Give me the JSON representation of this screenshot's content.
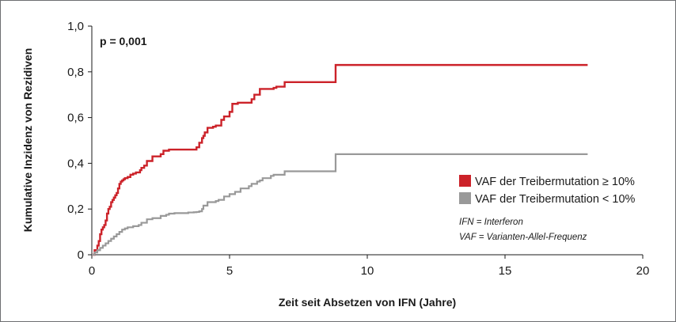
{
  "chart_data": {
    "type": "line",
    "step": true,
    "xlabel": "Zeit seit Absetzen von IFN (Jahre)",
    "ylabel": "Kumulative Inzidenz von Rezidiven",
    "xlim": [
      0,
      20
    ],
    "ylim": [
      0,
      1.0
    ],
    "x_ticks": [
      "0",
      "5",
      "10",
      "15",
      "20"
    ],
    "y_ticks": [
      "0",
      "0,2",
      "0,4",
      "0,6",
      "0,8",
      "1,0"
    ],
    "annotation": "p = 0,001",
    "notes": [
      "IFN = Interferon",
      "VAF = Varianten-Allel-Frequenz"
    ],
    "legend_position": "right",
    "series": [
      {
        "name": "VAF der Treibermutation ≥ 10%",
        "color": "#cc2229",
        "x": [
          0,
          0.1,
          0.2,
          0.25,
          0.3,
          0.35,
          0.4,
          0.45,
          0.5,
          0.55,
          0.6,
          0.65,
          0.7,
          0.75,
          0.8,
          0.85,
          0.9,
          0.95,
          1.0,
          1.05,
          1.1,
          1.15,
          1.2,
          1.3,
          1.4,
          1.5,
          1.6,
          1.7,
          1.75,
          1.8,
          1.9,
          2.0,
          2.2,
          2.3,
          2.5,
          2.6,
          2.8,
          3.5,
          3.8,
          3.9,
          4.0,
          4.05,
          4.1,
          4.2,
          4.4,
          4.5,
          4.7,
          4.8,
          5.0,
          5.1,
          5.3,
          5.8,
          5.9,
          6.1,
          6.6,
          6.7,
          7.0,
          7.5,
          8.85,
          18.0
        ],
        "y": [
          0,
          0.02,
          0.04,
          0.06,
          0.09,
          0.11,
          0.12,
          0.13,
          0.15,
          0.18,
          0.2,
          0.21,
          0.23,
          0.24,
          0.25,
          0.26,
          0.27,
          0.29,
          0.31,
          0.32,
          0.325,
          0.33,
          0.335,
          0.34,
          0.35,
          0.355,
          0.36,
          0.36,
          0.37,
          0.38,
          0.39,
          0.41,
          0.43,
          0.43,
          0.44,
          0.455,
          0.46,
          0.46,
          0.47,
          0.49,
          0.51,
          0.52,
          0.535,
          0.555,
          0.56,
          0.565,
          0.59,
          0.605,
          0.625,
          0.66,
          0.665,
          0.68,
          0.7,
          0.725,
          0.73,
          0.735,
          0.755,
          0.755,
          0.83,
          0.83
        ]
      },
      {
        "name": "VAF der Treibermutation < 10%",
        "color": "#999999",
        "x": [
          0,
          0.1,
          0.2,
          0.3,
          0.4,
          0.5,
          0.6,
          0.7,
          0.8,
          0.9,
          1.0,
          1.1,
          1.2,
          1.3,
          1.5,
          1.7,
          1.8,
          2.0,
          2.2,
          2.5,
          2.7,
          2.8,
          3.0,
          3.5,
          3.7,
          3.8,
          3.9,
          4.0,
          4.05,
          4.2,
          4.5,
          4.6,
          4.8,
          5.0,
          5.2,
          5.4,
          5.7,
          5.8,
          6.0,
          6.1,
          6.2,
          6.5,
          6.6,
          7.0,
          7.5,
          8.85,
          18.0
        ],
        "y": [
          0,
          0.01,
          0.02,
          0.03,
          0.04,
          0.05,
          0.06,
          0.07,
          0.08,
          0.09,
          0.1,
          0.11,
          0.115,
          0.12,
          0.125,
          0.13,
          0.14,
          0.155,
          0.16,
          0.17,
          0.175,
          0.18,
          0.182,
          0.185,
          0.186,
          0.187,
          0.19,
          0.2,
          0.215,
          0.23,
          0.235,
          0.24,
          0.255,
          0.265,
          0.275,
          0.29,
          0.3,
          0.31,
          0.32,
          0.325,
          0.335,
          0.345,
          0.35,
          0.365,
          0.365,
          0.44,
          0.44
        ]
      }
    ]
  }
}
